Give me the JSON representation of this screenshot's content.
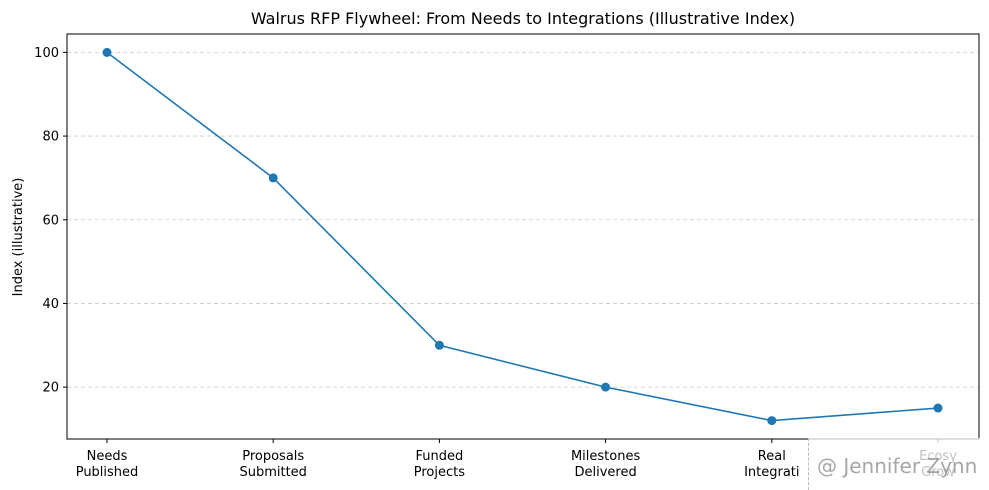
{
  "chart_data": {
    "type": "line",
    "title": "Walrus RFP Flywheel: From Needs to Integrations (Illustrative Index)",
    "xlabel": "",
    "ylabel": "Index (illustrative)",
    "categories": [
      [
        "Needs",
        "Published"
      ],
      [
        "Proposals",
        "Submitted"
      ],
      [
        "Funded",
        "Projects"
      ],
      [
        "Milestones",
        "Delivered"
      ],
      [
        "Real",
        "Integrati"
      ],
      [
        "Ecosy",
        "Grow"
      ]
    ],
    "series": [
      {
        "values": [
          100,
          70,
          30,
          20,
          12,
          15
        ],
        "color": "#1f77b4"
      }
    ],
    "ylim": [
      7.6,
      104.4
    ],
    "yticks": [
      20,
      40,
      60,
      80,
      100
    ],
    "grid": "horizontal-dashed",
    "legend": "none"
  },
  "watermark": {
    "text": "@ Jennifer Zynn"
  }
}
